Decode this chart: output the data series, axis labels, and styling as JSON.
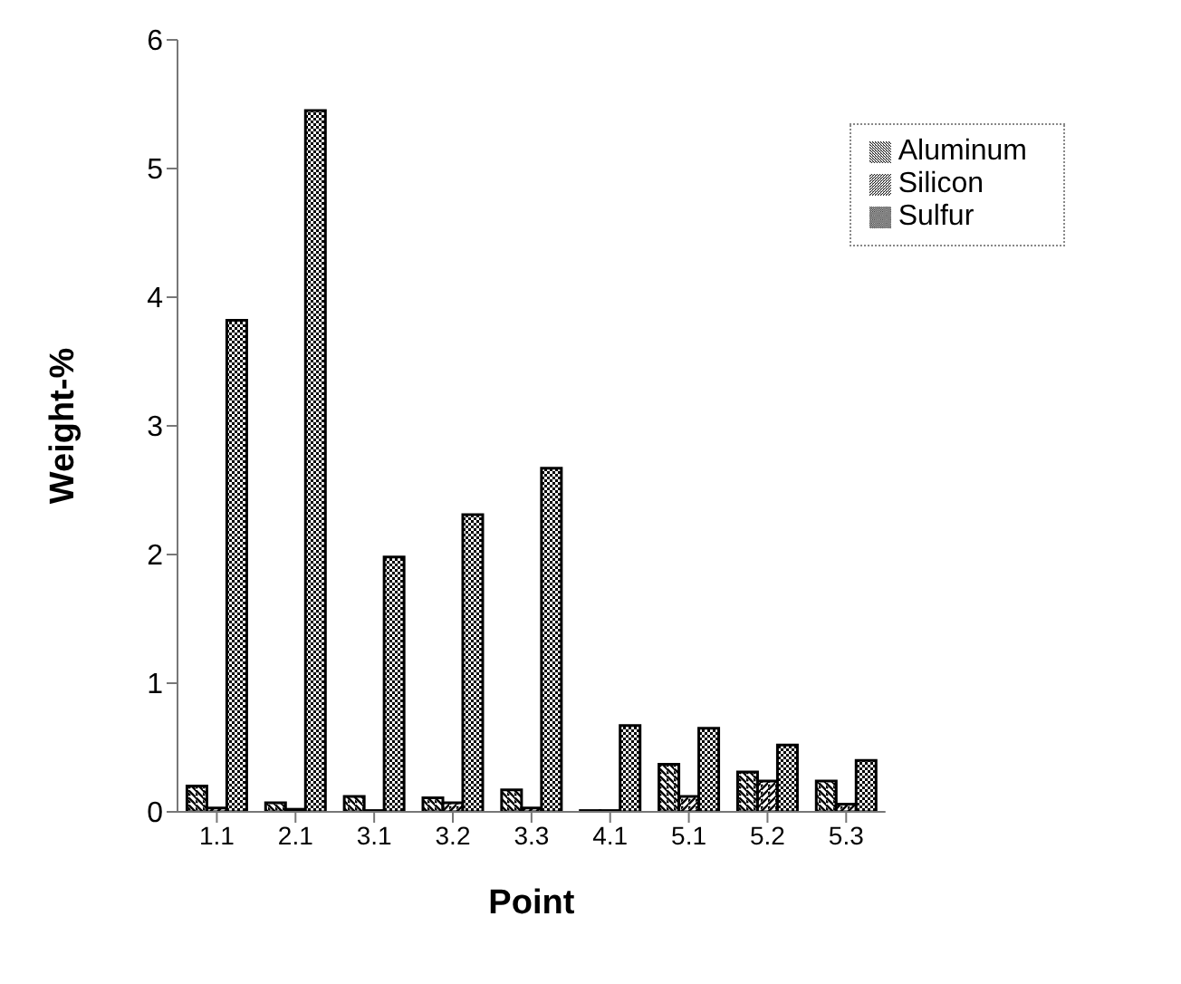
{
  "chart_data": {
    "type": "bar",
    "xlabel": "Point",
    "ylabel": "Weight-%",
    "categories": [
      "1.1",
      "2.1",
      "3.1",
      "3.2",
      "3.3",
      "4.1",
      "5.1",
      "5.2",
      "5.3"
    ],
    "series": [
      {
        "name": "Aluminum",
        "color": "#000000",
        "values": [
          0.2,
          0.07,
          0.12,
          0.11,
          0.17,
          0.01,
          0.37,
          0.31,
          0.24
        ]
      },
      {
        "name": "Silicon",
        "color": "#000000",
        "values": [
          0.03,
          0.02,
          0.01,
          0.07,
          0.03,
          0.01,
          0.12,
          0.24,
          0.06
        ]
      },
      {
        "name": "Sulfur",
        "color": "#000000",
        "values": [
          3.82,
          5.45,
          1.98,
          2.31,
          2.67,
          0.67,
          0.65,
          0.52,
          0.4
        ]
      }
    ],
    "ylim": [
      0,
      6
    ],
    "yticks": [
      0,
      1,
      2,
      3,
      4,
      5,
      6
    ],
    "grid": false,
    "legend": "top right"
  }
}
